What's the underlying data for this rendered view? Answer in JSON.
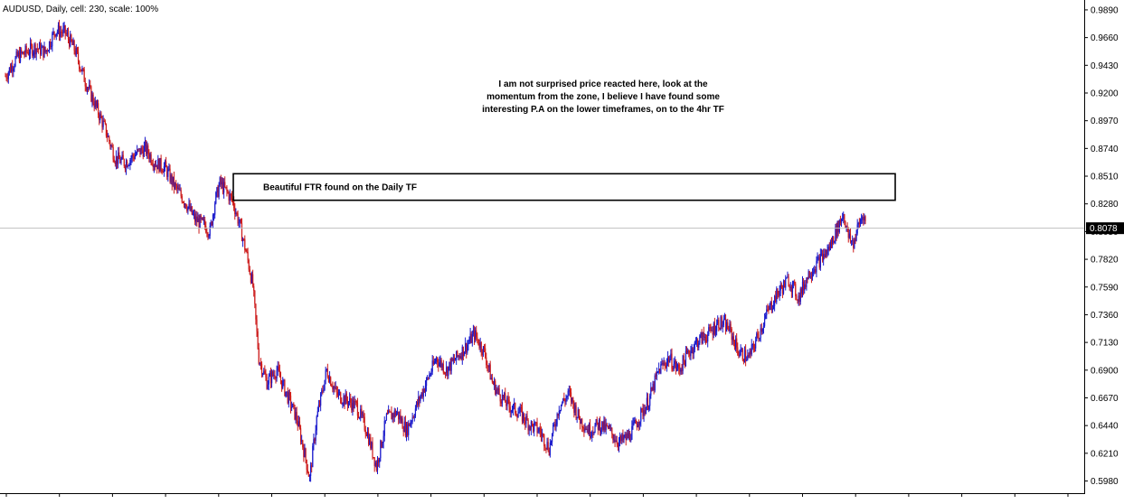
{
  "chart_data": {
    "type": "candlestick",
    "title": "AUDUSD, Daily, cell: 230, scale: 100%",
    "symbol": "AUDUSD",
    "timeframe": "Daily",
    "ylim": [
      0.5879,
      0.9972
    ],
    "y_ticks": [
      "0.9890",
      "0.9660",
      "0.9430",
      "0.9200",
      "0.8970",
      "0.8740",
      "0.8510",
      "0.8280",
      "0.8050",
      "0.7820",
      "0.7590",
      "0.7360",
      "0.7130",
      "0.6900",
      "0.6670",
      "0.6440",
      "0.6210",
      "0.5980"
    ],
    "current_price": 0.8078,
    "current_price_label": "0.8078",
    "colors": {
      "bull": "#1a1acc",
      "bear": "#cc1a1a",
      "axis": "#000000",
      "current_line": "#c0c0c0",
      "background": "#ffffff"
    },
    "grid": false,
    "anchors": [
      [
        0,
        0.934
      ],
      [
        12,
        0.95
      ],
      [
        30,
        0.958
      ],
      [
        40,
        0.954
      ],
      [
        50,
        0.972
      ],
      [
        60,
        0.97
      ],
      [
        70,
        0.955
      ],
      [
        80,
        0.93
      ],
      [
        90,
        0.91
      ],
      [
        100,
        0.89
      ],
      [
        110,
        0.866
      ],
      [
        120,
        0.862
      ],
      [
        130,
        0.869
      ],
      [
        140,
        0.874
      ],
      [
        150,
        0.862
      ],
      [
        160,
        0.858
      ],
      [
        170,
        0.842
      ],
      [
        180,
        0.83
      ],
      [
        190,
        0.815
      ],
      [
        200,
        0.81
      ],
      [
        205,
        0.805
      ],
      [
        210,
        0.83
      ],
      [
        215,
        0.845
      ],
      [
        220,
        0.84
      ],
      [
        228,
        0.83
      ],
      [
        235,
        0.81
      ],
      [
        242,
        0.785
      ],
      [
        248,
        0.76
      ],
      [
        254,
        0.7
      ],
      [
        262,
        0.68
      ],
      [
        272,
        0.69
      ],
      [
        282,
        0.67
      ],
      [
        292,
        0.65
      ],
      [
        300,
        0.62
      ],
      [
        305,
        0.6
      ],
      [
        312,
        0.65
      ],
      [
        322,
        0.69
      ],
      [
        332,
        0.67
      ],
      [
        342,
        0.665
      ],
      [
        352,
        0.66
      ],
      [
        362,
        0.64
      ],
      [
        372,
        0.61
      ],
      [
        382,
        0.65
      ],
      [
        392,
        0.655
      ],
      [
        402,
        0.64
      ],
      [
        412,
        0.66
      ],
      [
        422,
        0.68
      ],
      [
        432,
        0.7
      ],
      [
        442,
        0.69
      ],
      [
        452,
        0.7
      ],
      [
        462,
        0.71
      ],
      [
        470,
        0.72
      ],
      [
        480,
        0.705
      ],
      [
        488,
        0.68
      ],
      [
        495,
        0.67
      ],
      [
        505,
        0.66
      ],
      [
        515,
        0.655
      ],
      [
        525,
        0.645
      ],
      [
        535,
        0.64
      ],
      [
        545,
        0.625
      ],
      [
        555,
        0.66
      ],
      [
        565,
        0.67
      ],
      [
        575,
        0.65
      ],
      [
        585,
        0.64
      ],
      [
        595,
        0.645
      ],
      [
        605,
        0.64
      ],
      [
        615,
        0.63
      ],
      [
        625,
        0.635
      ],
      [
        635,
        0.65
      ],
      [
        645,
        0.665
      ],
      [
        655,
        0.69
      ],
      [
        665,
        0.7
      ],
      [
        675,
        0.69
      ],
      [
        685,
        0.705
      ],
      [
        695,
        0.715
      ],
      [
        705,
        0.72
      ],
      [
        715,
        0.73
      ],
      [
        725,
        0.725
      ],
      [
        735,
        0.705
      ],
      [
        745,
        0.7
      ],
      [
        755,
        0.72
      ],
      [
        765,
        0.74
      ],
      [
        775,
        0.755
      ],
      [
        785,
        0.765
      ],
      [
        795,
        0.75
      ],
      [
        805,
        0.77
      ],
      [
        815,
        0.78
      ],
      [
        825,
        0.79
      ],
      [
        835,
        0.81
      ],
      [
        840,
        0.82
      ],
      [
        845,
        0.8
      ],
      [
        850,
        0.795
      ],
      [
        855,
        0.81
      ],
      [
        860,
        0.82
      ],
      [
        862,
        0.812
      ]
    ],
    "annotations": [
      {
        "text_lines": [
          "I am not surprised price reacted here, look at the",
          "momentum from the zone, I believe I have found some",
          "interesting P.A on the lower timeframes, on to the 4hr TF"
        ],
        "anchor": "center"
      },
      {
        "type": "zone-box",
        "label": "Beautiful FTR found on the Daily TF",
        "y_top": 0.853,
        "y_bottom": 0.831
      }
    ]
  }
}
